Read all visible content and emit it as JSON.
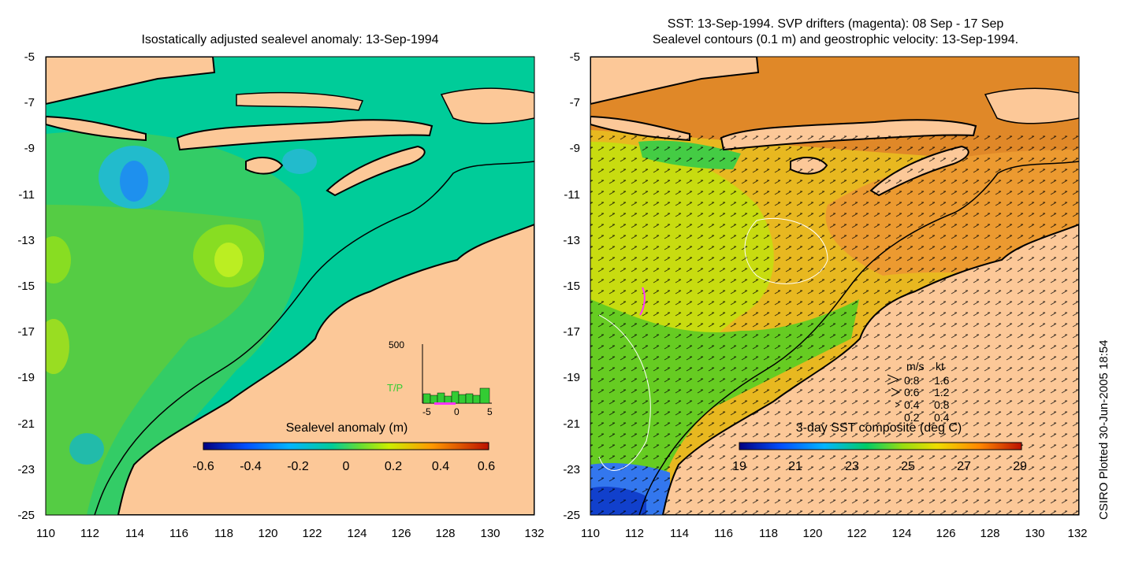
{
  "left_panel": {
    "title": "Isostatically adjusted sealevel anomaly: 13-Sep-1994",
    "colorbar": {
      "title": "Sealevel anomaly (m)",
      "ticks": [
        "-0.6",
        "-0.4",
        "-0.2",
        "0",
        "0.2",
        "0.4",
        "0.6"
      ],
      "range": [
        -0.6,
        0.6
      ]
    },
    "inset": {
      "label": "T/P",
      "y_max_label": "500",
      "x_ticks": [
        "-5",
        "0",
        "5"
      ],
      "bar_color": "#33cc33",
      "marker_color": "#ff33ff"
    }
  },
  "right_panel": {
    "title_line1": "SST: 13-Sep-1994. SVP drifters (magenta): 08 Sep - 17 Sep",
    "title_line2": "Sealevel contours (0.1 m) and geostrophic velocity: 13-Sep-1994.",
    "colorbar": {
      "title": "3-day SST composite (deg C)",
      "ticks": [
        "19",
        "21",
        "23",
        "25",
        "27",
        "29"
      ],
      "range": [
        19,
        29
      ]
    },
    "speed_legend": {
      "header_ms": "m/s",
      "header_kt": "kt",
      "rows": [
        {
          "ms": "0.8",
          "kt": "1.6"
        },
        {
          "ms": "0.6",
          "kt": "1.2"
        },
        {
          "ms": "0.4",
          "kt": "0.8"
        },
        {
          "ms": "0.2",
          "kt": "0.4"
        }
      ]
    }
  },
  "axes": {
    "lon_ticks": [
      "110",
      "112",
      "114",
      "116",
      "118",
      "120",
      "122",
      "124",
      "126",
      "128",
      "130",
      "132"
    ],
    "lat_ticks": [
      "-5",
      "-7",
      "-9",
      "-11",
      "-13",
      "-15",
      "-17",
      "-19",
      "-21",
      "-23",
      "-25"
    ],
    "lon_range": [
      110,
      132
    ],
    "lat_range": [
      -25,
      -5
    ]
  },
  "side_credit": "CSIRO Plotted 30-Jun-2005 18:54",
  "colors": {
    "land": "#fcc898",
    "ocean_left": "#00cc99",
    "ocean_right_warm": "#f0a030",
    "ocean_right_mid": "#c8dc10"
  }
}
